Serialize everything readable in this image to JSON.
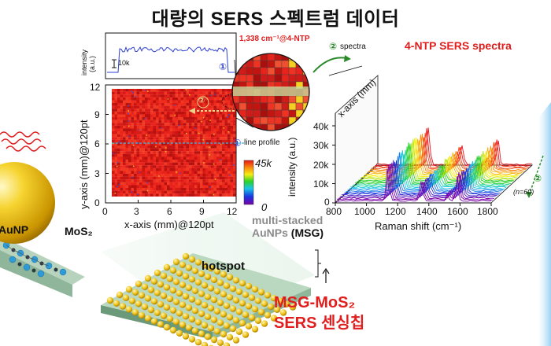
{
  "title": "대량의 SERS 스펙트럼 데이터",
  "intensity_panel": {
    "ylabel_line1": "intensity",
    "ylabel_line2": "(a.u.)",
    "scale": "10k",
    "marker": "①"
  },
  "map": {
    "yaxis_label": "y-axis (mm)@120pt",
    "xaxis_label": "x-axis (mm)@120pt",
    "x_ticks": [
      "0",
      "3",
      "6",
      "9",
      "12"
    ],
    "y_ticks": [
      "0",
      "3",
      "6",
      "9",
      "12"
    ],
    "line_profile_marker": "①",
    "line_profile_label": "line profile",
    "arrow_marker": "②"
  },
  "colorbar": {
    "max_label": "45k",
    "min_label": "0"
  },
  "zoom": {
    "label": "1,338 cm⁻¹@4-NTP"
  },
  "spectra": {
    "title": "4-NTP SERS spectra",
    "spectra_arrow_marker": "②",
    "spectra_arrow_label": "spectra",
    "xaxis_label": "Raman shift (cm⁻¹)",
    "yaxis_label": "intensity (a.u.)",
    "depth_label": "x-axis (mm)",
    "x_ticks": [
      "800",
      "1000",
      "1200",
      "1400",
      "1600",
      "1800"
    ],
    "y_ticks": [
      "0",
      "10k",
      "20k",
      "30k",
      "40k"
    ],
    "n_label": "(n=60)",
    "depth_marker": "②"
  },
  "substrate": {
    "aunp_label": "AuNP",
    "mos2_label": "MoS₂",
    "msg_label_line1": "multi-stacked",
    "msg_label_line2": "AuNPs",
    "msg_abbr": "(MSG)",
    "hotspot_label": "hotspot",
    "chip_line1": "MSG-MoS₂",
    "chip_line2": "SERS 센싱칩"
  },
  "colors": {
    "map_red": "#e8231c",
    "accent_red": "#e11d1d",
    "gold": "#f2c419",
    "blue_line": "#2d3fd3",
    "green_arrow": "#2a8a2a"
  }
}
